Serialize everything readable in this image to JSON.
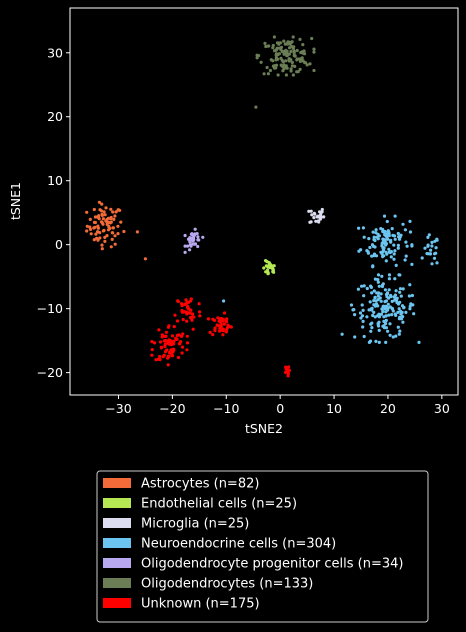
{
  "chart_data": {
    "type": "scatter",
    "xlabel": "tSNE2",
    "ylabel": "tSNE1",
    "xlim": [
      -39,
      33
    ],
    "ylim": [
      -23.5,
      37
    ],
    "xticks": [
      -30,
      -20,
      -10,
      0,
      10,
      20,
      30
    ],
    "yticks": [
      -20,
      -10,
      0,
      10,
      20,
      30
    ],
    "tick_labels_x": [
      "−30",
      "−20",
      "−10",
      "0",
      "10",
      "20",
      "30"
    ],
    "tick_labels_y": [
      "−20",
      "−10",
      "0",
      "10",
      "20",
      "30"
    ],
    "grid": false,
    "legend_placement": "below",
    "series": [
      {
        "name": "Astrocytes (n=82)",
        "color": "#f26b38",
        "clusters": [
          {
            "cx": -32.5,
            "cy": 3.0,
            "sx": 2.2,
            "sy": 2.2,
            "n": 80
          }
        ],
        "extra_points": [
          [
            -25,
            -2.2
          ],
          [
            -26.5,
            2.0
          ]
        ]
      },
      {
        "name": "Endothelial cells (n=25)",
        "color": "#b5e853",
        "clusters": [
          {
            "cx": -2.0,
            "cy": -3.8,
            "sx": 0.8,
            "sy": 0.8,
            "n": 25
          }
        ],
        "extra_points": []
      },
      {
        "name": "Microglia (n=25)",
        "color": "#dcdcf0",
        "clusters": [
          {
            "cx": 6.8,
            "cy": 4.5,
            "sx": 0.9,
            "sy": 0.9,
            "n": 25
          }
        ],
        "extra_points": []
      },
      {
        "name": "Neuroendocrine cells (n=304)",
        "color": "#6cc5f0",
        "clusters": [
          {
            "cx": 19.5,
            "cy": 0.5,
            "sx": 3.0,
            "sy": 2.4,
            "n": 110
          },
          {
            "cx": 19.5,
            "cy": -10.0,
            "sx": 3.8,
            "sy": 3.2,
            "n": 170
          },
          {
            "cx": 28.0,
            "cy": -1.0,
            "sx": 1.0,
            "sy": 1.6,
            "n": 22
          }
        ],
        "extra_points": [
          [
            -10.5,
            -8.8
          ],
          [
            11.5,
            -14.0
          ]
        ]
      },
      {
        "name": "Oligodendrocyte progenitor cells (n=34)",
        "color": "#b8a8f0",
        "clusters": [
          {
            "cx": -16.0,
            "cy": 0.6,
            "sx": 1.0,
            "sy": 1.1,
            "n": 34
          }
        ],
        "extra_points": []
      },
      {
        "name": "Oligodendrocytes (n=133)",
        "color": "#6a7d55",
        "clusters": [
          {
            "cx": 1.0,
            "cy": 29.5,
            "sx": 3.2,
            "sy": 1.8,
            "n": 132
          }
        ],
        "extra_points": [
          [
            -4.5,
            21.5
          ]
        ]
      },
      {
        "name": "Unknown (n=175)",
        "color": "#ff0000",
        "clusters": [
          {
            "cx": -17.0,
            "cy": -10.5,
            "sx": 1.6,
            "sy": 2.0,
            "n": 40
          },
          {
            "cx": -20.5,
            "cy": -15.5,
            "sx": 2.0,
            "sy": 2.0,
            "n": 75
          },
          {
            "cx": -11.0,
            "cy": -12.5,
            "sx": 1.4,
            "sy": 1.1,
            "n": 45
          },
          {
            "cx": 1.2,
            "cy": -19.8,
            "sx": 0.3,
            "sy": 0.5,
            "n": 15
          }
        ],
        "extra_points": []
      }
    ]
  }
}
